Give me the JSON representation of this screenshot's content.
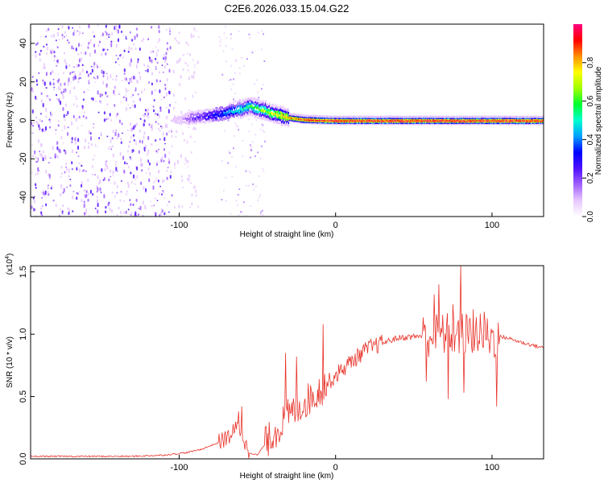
{
  "title": "C2E6.2026.033.15.04.G22",
  "chart_data": [
    {
      "type": "heatmap",
      "title": "C2E6.2026.033.15.04.G22",
      "xlabel": "Height of straight line (km)",
      "ylabel": "Frequency (Hz)",
      "xlim": [
        -195,
        133
      ],
      "ylim": [
        -50,
        50
      ],
      "xticks": [
        -100,
        0,
        100
      ],
      "xtick_labels": [
        "-100",
        "0",
        "100"
      ],
      "yticks": [
        -40,
        -20,
        0,
        20,
        40
      ],
      "ytick_labels": [
        "-40",
        "-20",
        "0",
        "20",
        "40"
      ],
      "signal_track": {
        "x": [
          -110,
          -100,
          -90,
          -80,
          -70,
          -60,
          -55,
          -50,
          -45,
          -40,
          -35,
          -30,
          -20,
          -10,
          0,
          20,
          50,
          100,
          133
        ],
        "freq": [
          0,
          0.5,
          1.5,
          2.5,
          4,
          6,
          7.5,
          6,
          5,
          3.5,
          2.5,
          1.5,
          0.5,
          0.2,
          0,
          0,
          0,
          0,
          0
        ]
      },
      "noise_region": {
        "x_from": -195,
        "x_to": -100
      },
      "colorbar": {
        "label": "Normalized spectral amplitude",
        "range": [
          0,
          1
        ],
        "ticks": [
          0.0,
          0.2,
          0.4,
          0.6,
          0.8
        ],
        "tick_labels": [
          "0.0",
          "0.2",
          "0.4",
          "0.6",
          "0.8"
        ],
        "colors": [
          "#ffffff",
          "#e8c8ff",
          "#a060ff",
          "#5010ff",
          "#0000ff",
          "#00a0ff",
          "#00ffd0",
          "#00ff30",
          "#a0ff00",
          "#ffff00",
          "#ff9000",
          "#ff0000",
          "#ff0080"
        ]
      }
    },
    {
      "type": "line",
      "xlabel": "Height of straight line (km)",
      "ylabel": "SNR (10 * v/v)",
      "ylabel_exponent": "(x10",
      "ylabel_exponent_power": "4",
      "xlim": [
        -195,
        133
      ],
      "ylim": [
        0,
        1.55
      ],
      "xticks": [
        -100,
        0,
        100
      ],
      "xtick_labels": [
        "-100",
        "0",
        "100"
      ],
      "yticks": [
        0,
        0.5,
        1.0,
        1.5
      ],
      "ytick_labels": [
        "0.0",
        "0.5",
        "1.0",
        "1.5"
      ],
      "color": "#e8332a",
      "envelope": {
        "x": [
          -195,
          -130,
          -110,
          -95,
          -85,
          -75,
          -68,
          -63,
          -60,
          -58,
          -55,
          -50,
          -45,
          -40,
          -35,
          -30,
          -20,
          -10,
          0,
          10,
          20,
          30,
          40,
          50,
          55,
          60,
          70,
          80,
          90,
          100,
          105,
          110,
          120,
          133
        ],
        "y": [
          0.02,
          0.02,
          0.03,
          0.05,
          0.08,
          0.13,
          0.18,
          0.25,
          0.22,
          0.12,
          0.05,
          0.03,
          0.12,
          0.2,
          0.27,
          0.35,
          0.45,
          0.55,
          0.67,
          0.78,
          0.88,
          0.93,
          0.97,
          0.98,
          0.99,
          0.99,
          1.0,
          1.0,
          1.0,
          0.97,
          0.98,
          0.97,
          0.93,
          0.89
        ]
      },
      "spikes": [
        {
          "x": 80,
          "y": 1.55
        },
        {
          "x": 66,
          "y": 1.4
        },
        {
          "x": 63,
          "y": 1.32
        },
        {
          "x": 72,
          "y": 0.48
        },
        {
          "x": 103,
          "y": 0.42
        },
        {
          "x": 88,
          "y": 1.2
        },
        {
          "x": 75,
          "y": 1.24
        },
        {
          "x": 82,
          "y": 0.53
        },
        {
          "x": 95,
          "y": 1.18
        },
        {
          "x": 58,
          "y": 0.62
        },
        {
          "x": -8,
          "y": 1.08
        },
        {
          "x": -32,
          "y": 0.85
        },
        {
          "x": -25,
          "y": 0.82
        },
        {
          "x": -60,
          "y": 0.42
        },
        {
          "x": -62,
          "y": 0.38
        }
      ]
    }
  ]
}
